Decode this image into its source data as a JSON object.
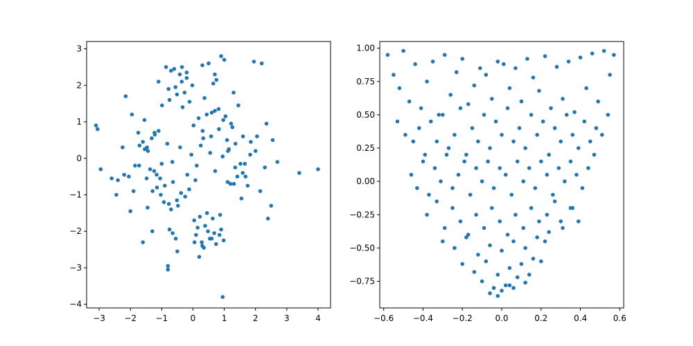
{
  "chart_data": [
    {
      "type": "scatter",
      "title": "",
      "xlabel": "",
      "ylabel": "",
      "xlim": [
        -3.4,
        4.4
      ],
      "ylim": [
        -4.1,
        3.2
      ],
      "xticks": [
        -3,
        -2,
        -1,
        0,
        1,
        2,
        3,
        4
      ],
      "yticks": [
        -4,
        -3,
        -2,
        -1,
        0,
        1,
        2,
        3
      ],
      "xtick_labels": [
        "−3",
        "−2",
        "−1",
        "0",
        "1",
        "2",
        "3",
        "4"
      ],
      "ytick_labels": [
        "−4",
        "−3",
        "−2",
        "−1",
        "0",
        "1",
        "2",
        "3"
      ],
      "grid": false,
      "color": "#1f77b4",
      "series": [
        {
          "x": [
            -0.05,
            0.12,
            0.25,
            -0.18,
            0.33,
            -0.41,
            0.08,
            0.55,
            -0.66,
            0.71,
            -0.82,
            0.95,
            -1.05,
            1.15,
            -1.22,
            1.31,
            -1.44,
            1.52,
            -1.6,
            1.68,
            0.02,
            -0.12,
            0.18,
            -0.25,
            0.31,
            -0.38,
            0.44,
            -0.51,
            0.58,
            -0.64,
            0.7,
            -0.77,
            0.83,
            -0.9,
            0.97,
            -1.03,
            1.09,
            -1.16,
            1.22,
            -1.29,
            0.45,
            -0.33,
            0.22,
            -0.11,
            0.04,
            0.37,
            -0.48,
            0.6,
            -0.7,
            0.82,
            -0.93,
            1.04,
            -1.15,
            1.26,
            -1.37,
            0.15,
            -0.27,
            0.39,
            -0.51,
            0.63,
            -0.75,
            0.87,
            -0.99,
            1.11,
            -1.23,
            1.35,
            -1.47,
            1.59,
            -1.71,
            1.83,
            -0.02,
            0.1,
            -0.2,
            0.28,
            -0.36,
            0.48,
            -0.56,
            0.68,
            -0.78,
            0.9,
            -1.0,
            1.12,
            -1.24,
            1.36,
            -1.48,
            1.6,
            -1.72,
            0.3,
            -0.42,
            0.54,
            -0.6,
            0.74,
            -0.86,
            0.98,
            -1.1,
            1.2,
            -1.32,
            1.42,
            -1.54,
            1.66,
            -3.1,
            -3.05,
            -2.95,
            -2.6,
            -2.2,
            -2.15,
            -1.9,
            1.95,
            2.2,
            2.4,
            2.7,
            3.4,
            4.0,
            2.0,
            2.3,
            2.5,
            -2.4,
            -2.0,
            -1.6,
            -1.3,
            0.9,
            0.95,
            0.5,
            0.3,
            -0.5,
            -0.8,
            -0.8,
            1.0,
            0.7,
            0.2,
            -0.35,
            0.6,
            -0.7,
            1.3,
            -1.1,
            0.35,
            -0.2,
            0.85,
            -0.55,
            0.05,
            -1.75,
            1.75,
            -1.85,
            1.85,
            -1.95,
            -2.05,
            2.05,
            2.15,
            -2.25,
            2.35,
            -2.45,
            2.55,
            1.45,
            -1.45,
            1.55,
            -1.55,
            0.65,
            -0.65,
            0.75,
            -0.75
          ],
          "y": [
            0.1,
            -0.2,
            0.35,
            -0.45,
            0.55,
            0.3,
            -0.6,
            0.15,
            -0.1,
            -0.35,
            0.4,
            0.05,
            -0.55,
            0.25,
            0.65,
            -0.7,
            0.2,
            -0.15,
            0.45,
            -0.5,
            0.9,
            -0.85,
            1.1,
            -1.05,
            0.75,
            -0.95,
            1.2,
            -1.15,
            0.6,
            -0.65,
            1.3,
            -1.25,
            0.8,
            -0.75,
            1.05,
            -1.0,
            0.5,
            -0.45,
            0.95,
            -0.9,
            -1.5,
            1.4,
            -1.6,
            1.55,
            -1.7,
            1.65,
            -1.3,
            1.25,
            -1.4,
            1.35,
            -1.2,
            1.15,
            -0.8,
            0.85,
            -0.3,
            -1.9,
            1.8,
            -1.85,
            1.75,
            -1.65,
            1.6,
            -1.55,
            1.45,
            -0.65,
            0.7,
            -0.25,
            0.3,
            -0.4,
            0.35,
            0.1,
            2.0,
            -2.1,
            2.2,
            -2.3,
            2.1,
            -2.0,
            1.95,
            -2.05,
            1.9,
            -1.95,
            -0.15,
            0.2,
            -0.35,
            0.4,
            -0.55,
            0.6,
            -0.2,
            -2.4,
            2.3,
            -2.2,
            2.45,
            -2.35,
            2.5,
            -2.25,
            0.75,
            -0.7,
            0.55,
            -0.5,
            0.25,
            -0.15,
            0.9,
            0.8,
            -0.3,
            -0.55,
            -0.45,
            1.7,
            -0.9,
            2.65,
            2.6,
            -1.65,
            -0.1,
            -0.4,
            -0.3,
            0.2,
            -0.25,
            -1.3,
            -0.6,
            -1.45,
            -2.3,
            -2.0,
            2.8,
            -3.8,
            2.6,
            2.55,
            -2.55,
            -2.95,
            -3.05,
            2.7,
            2.3,
            -2.7,
            2.5,
            -2.2,
            2.4,
            1.8,
            2.1,
            -2.45,
            2.35,
            -2.1,
            -2.2,
            -2.3,
            0.7,
            -0.75,
            -0.2,
            0.45,
            1.2,
            -0.5,
            0.6,
            -0.9,
            0.3,
            0.95,
            -1.0,
            0.5,
            1.45,
            -1.35,
            -1.1,
            1.05,
            2.05,
            -2.05,
            2.15,
            -1.95
          ]
        }
      ]
    },
    {
      "type": "scatter",
      "title": "",
      "xlabel": "",
      "ylabel": "",
      "xlim": [
        -0.62,
        0.62
      ],
      "ylim": [
        -0.95,
        1.05
      ],
      "xticks": [
        -0.6,
        -0.4,
        -0.2,
        0.0,
        0.2,
        0.4,
        0.6
      ],
      "yticks": [
        -0.75,
        -0.5,
        -0.25,
        0.0,
        0.25,
        0.5,
        0.75,
        1.0
      ],
      "xtick_labels": [
        "−0.6",
        "−0.4",
        "−0.2",
        "0.0",
        "0.2",
        "0.4",
        "0.6"
      ],
      "ytick_labels": [
        "−0.75",
        "−0.50",
        "−0.25",
        "0.00",
        "0.25",
        "0.50",
        "0.75",
        "1.00"
      ],
      "grid": false,
      "color": "#1f77b4",
      "series": [
        {
          "x": [
            -0.58,
            -0.55,
            -0.52,
            -0.5,
            -0.47,
            -0.44,
            -0.41,
            -0.38,
            -0.35,
            -0.32,
            -0.29,
            -0.26,
            -0.23,
            -0.2,
            -0.17,
            -0.14,
            -0.11,
            -0.08,
            -0.05,
            -0.02,
            0.01,
            0.04,
            0.07,
            0.1,
            0.13,
            0.16,
            0.19,
            0.22,
            0.25,
            0.28,
            0.31,
            0.34,
            0.37,
            0.4,
            0.43,
            0.46,
            0.49,
            0.52,
            0.55,
            0.57,
            -0.53,
            -0.49,
            -0.45,
            -0.42,
            -0.39,
            -0.36,
            -0.33,
            -0.3,
            -0.27,
            -0.24,
            -0.21,
            -0.18,
            -0.15,
            -0.12,
            -0.09,
            -0.06,
            -0.03,
            0.0,
            0.03,
            0.06,
            0.09,
            0.12,
            0.15,
            0.18,
            0.21,
            0.24,
            0.27,
            0.3,
            0.33,
            0.36,
            0.39,
            0.42,
            0.45,
            0.48,
            0.51,
            0.54,
            -0.46,
            -0.43,
            -0.4,
            -0.37,
            -0.34,
            -0.31,
            -0.28,
            -0.25,
            -0.22,
            -0.19,
            -0.16,
            -0.13,
            -0.1,
            -0.07,
            -0.04,
            -0.01,
            0.02,
            0.05,
            0.08,
            0.11,
            0.14,
            0.17,
            0.2,
            0.23,
            0.26,
            0.29,
            0.32,
            0.35,
            0.38,
            0.41,
            0.44,
            0.47,
            -0.38,
            -0.33,
            -0.29,
            -0.25,
            -0.21,
            -0.17,
            -0.13,
            -0.09,
            -0.05,
            -0.01,
            0.03,
            0.07,
            0.11,
            0.15,
            0.19,
            0.23,
            0.27,
            0.31,
            0.35,
            0.39,
            -0.3,
            -0.24,
            -0.18,
            -0.12,
            -0.06,
            0.0,
            0.06,
            0.12,
            0.18,
            0.24,
            0.3,
            0.36,
            -0.2,
            -0.14,
            -0.08,
            -0.02,
            0.04,
            0.1,
            0.16,
            0.22,
            -0.1,
            -0.04,
            0.02,
            0.08,
            0.14,
            0.2,
            -0.06,
            0.0,
            0.06,
            0.12,
            -0.02,
            0.04
          ],
          "y": [
            0.95,
            0.8,
            0.7,
            0.98,
            0.6,
            0.88,
            0.55,
            0.75,
            0.9,
            0.5,
            0.95,
            0.65,
            0.82,
            0.92,
            0.58,
            0.72,
            0.85,
            0.8,
            0.62,
            0.9,
            0.88,
            0.7,
            0.85,
            0.6,
            0.92,
            0.78,
            0.68,
            0.94,
            0.55,
            0.86,
            0.62,
            0.9,
            0.52,
            0.93,
            0.7,
            0.96,
            0.6,
            0.98,
            0.8,
            0.95,
            0.45,
            0.35,
            0.3,
            0.4,
            0.2,
            0.45,
            0.3,
            0.5,
            0.25,
            0.35,
            0.55,
            0.2,
            0.4,
            0.3,
            0.5,
            0.25,
            0.45,
            0.35,
            0.55,
            0.3,
            0.4,
            0.25,
            0.5,
            0.35,
            0.45,
            0.2,
            0.4,
            0.3,
            0.5,
            0.35,
            0.25,
            0.45,
            0.3,
            0.4,
            0.35,
            0.5,
            0.05,
            -0.05,
            0.15,
            -0.1,
            0.1,
            0.0,
            0.2,
            -0.05,
            0.05,
            0.15,
            -0.1,
            0.1,
            0.0,
            0.15,
            -0.05,
            0.1,
            0.05,
            -0.1,
            0.15,
            0.0,
            0.1,
            -0.05,
            0.15,
            0.05,
            -0.1,
            0.1,
            0.0,
            0.15,
            0.05,
            -0.05,
            0.1,
            0.2,
            -0.25,
            -0.15,
            -0.35,
            -0.2,
            -0.3,
            -0.4,
            -0.25,
            -0.35,
            -0.2,
            -0.3,
            -0.4,
            -0.25,
            -0.35,
            -0.2,
            -0.3,
            -0.25,
            -0.15,
            -0.35,
            -0.2,
            -0.3,
            -0.45,
            -0.5,
            -0.42,
            -0.55,
            -0.48,
            -0.52,
            -0.45,
            -0.5,
            -0.42,
            -0.38,
            -0.3,
            -0.2,
            -0.62,
            -0.68,
            -0.6,
            -0.7,
            -0.65,
            -0.62,
            -0.58,
            -0.45,
            -0.75,
            -0.8,
            -0.78,
            -0.72,
            -0.7,
            -0.6,
            -0.84,
            -0.82,
            -0.8,
            -0.76,
            -0.86,
            -0.78
          ]
        }
      ]
    }
  ]
}
